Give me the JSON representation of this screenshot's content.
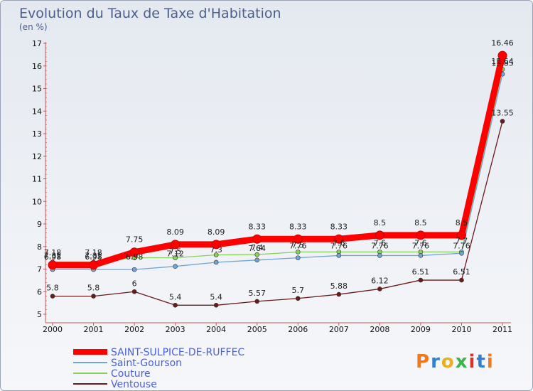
{
  "chart_data": {
    "type": "line",
    "title": "Evolution du Taux de Taxe d'Habitation",
    "subtitle": "(en %)",
    "categories": [
      "2000",
      "2001",
      "2002",
      "2003",
      "2004",
      "2005",
      "2006",
      "2007",
      "2008",
      "2009",
      "2010",
      "2011"
    ],
    "ylim": [
      5,
      17
    ],
    "yticks": [
      5,
      6,
      7,
      8,
      9,
      10,
      11,
      12,
      13,
      14,
      15,
      16,
      17
    ],
    "grid": false,
    "legend": "bottom-left",
    "series": [
      {
        "name": "Ventouse",
        "color": "#6b1a1a",
        "values": [
          5.8,
          5.8,
          6,
          5.4,
          5.4,
          5.57,
          5.7,
          5.88,
          6.12,
          6.51,
          6.51,
          13.55
        ],
        "labels": [
          "5.8",
          "5.8",
          "6",
          "5.4",
          "5.4",
          "5.57",
          "5.7",
          "5.88",
          "6.12",
          "6.51",
          "6.51",
          "13.55"
        ]
      },
      {
        "name": "Couture",
        "color": "#88d15a",
        "values": [
          7.31,
          7.31,
          7.5,
          7.5,
          7.63,
          7.64,
          7.76,
          7.76,
          7.76,
          7.76,
          7.76,
          15.85
        ],
        "labels": [
          "7.31",
          "7.31",
          "",
          "7.5",
          "",
          "7.64",
          "7.76",
          "7.76",
          "7.76",
          "7.76",
          "7.76",
          "15.85"
        ]
      },
      {
        "name": "Saint-Gourson",
        "color": "#6ea5d4",
        "values": [
          6.98,
          6.98,
          6.98,
          7.12,
          7.3,
          7.4,
          7.5,
          7.6,
          7.6,
          7.6,
          7.7,
          15.64
        ],
        "labels": [
          "6.98",
          "6.98",
          "6.98",
          "7.12",
          "7.3",
          "7.4",
          "7.5",
          "7.6",
          "7.6",
          "7.6",
          "7.7",
          "15.64"
        ]
      },
      {
        "name": "SAINT-SULPICE-DE-RUFFEC",
        "color": "#ff0000",
        "values": [
          7.18,
          7.18,
          7.75,
          8.09,
          8.09,
          8.33,
          8.33,
          8.33,
          8.5,
          8.5,
          8.5,
          16.46
        ],
        "labels": [
          "7.18",
          "7.18",
          "7.75",
          "8.09",
          "8.09",
          "8.33",
          "8.33",
          "8.33",
          "8.5",
          "8.5",
          "8.5",
          "16.46"
        ]
      }
    ],
    "legend_order": [
      "SAINT-SULPICE-DE-RUFFEC",
      "Saint-Gourson",
      "Couture",
      "Ventouse"
    ]
  },
  "branding": {
    "logo": "Proxiti",
    "logo_colors": [
      "#f07a1a",
      "#2f7fd4",
      "#e8b020",
      "#39b54a",
      "#d4342a",
      "#2f7fd4",
      "#f07a1a"
    ]
  }
}
